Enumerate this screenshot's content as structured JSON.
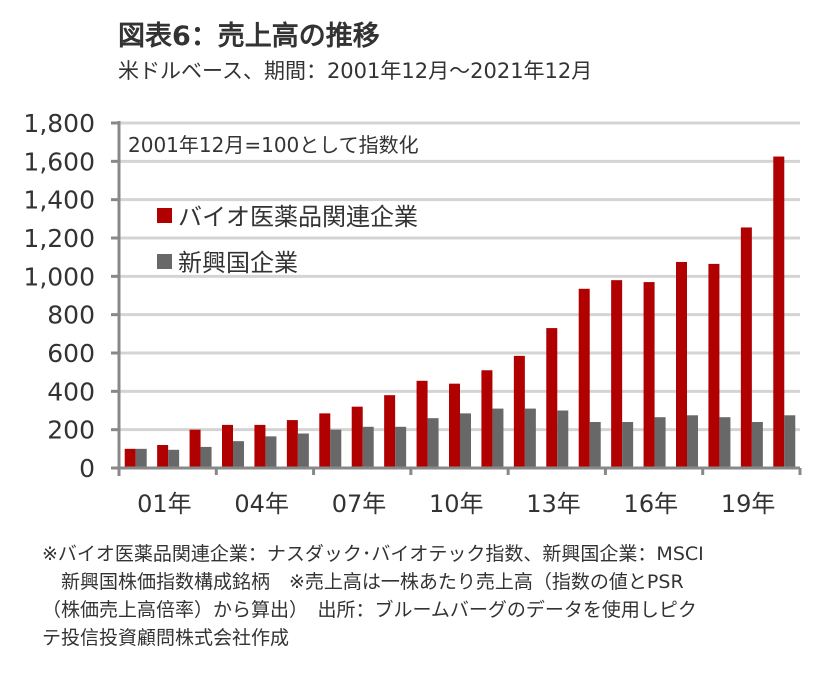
{
  "header": {
    "title": "図表6：売上高の推移",
    "subtitle": "米ドルベース、期間：2001年12月～2021年12月"
  },
  "chart_data": {
    "type": "bar",
    "title": "図表6：売上高の推移",
    "subtitle": "米ドルベース、期間：2001年12月～2021年12月",
    "annotation": "2001年12月=100として指数化",
    "xlabel": "",
    "ylabel": "",
    "ylim": [
      0,
      1800
    ],
    "yticks": [
      0,
      200,
      400,
      600,
      800,
      1000,
      1200,
      1400,
      1600,
      1800
    ],
    "ytick_labels": [
      "0",
      "200",
      "400",
      "600",
      "800",
      "1,000",
      "1,200",
      "1,400",
      "1,600",
      "1,800"
    ],
    "grid": true,
    "legend_position": "top-left",
    "categories": [
      "01",
      "02",
      "03",
      "04",
      "05",
      "06",
      "07",
      "08",
      "09",
      "10",
      "11",
      "12",
      "13",
      "14",
      "15",
      "16",
      "17",
      "18",
      "19",
      "20",
      "21"
    ],
    "xtick_labels": [
      {
        "index": 0,
        "label": "01年"
      },
      {
        "index": 3,
        "label": "04年"
      },
      {
        "index": 6,
        "label": "07年"
      },
      {
        "index": 9,
        "label": "10年"
      },
      {
        "index": 12,
        "label": "13年"
      },
      {
        "index": 15,
        "label": "16年"
      },
      {
        "index": 18,
        "label": "19年"
      }
    ],
    "series": [
      {
        "name": "バイオ医薬品関連企業",
        "color": "#b00000",
        "values": [
          100,
          120,
          200,
          225,
          225,
          250,
          285,
          320,
          380,
          455,
          440,
          510,
          585,
          730,
          935,
          980,
          970,
          1075,
          1065,
          1255,
          1625
        ]
      },
      {
        "name": "新興国企業",
        "color": "#686868",
        "values": [
          100,
          95,
          110,
          140,
          165,
          180,
          200,
          215,
          215,
          260,
          285,
          310,
          310,
          300,
          240,
          240,
          265,
          275,
          265,
          240,
          275
        ]
      }
    ]
  },
  "footnote": {
    "lines": [
      "※バイオ医薬品関連企業：ナスダック･バイオテック指数、新興国企業：MSCI",
      "　新興国株価指数構成銘柄　※売上高は一株あたり売上高（指数の値とPSR",
      "（株価売上高倍率）から算出）　出所：ブルームバーグのデータを使用しピク",
      "テ投信投資顧問株式会社作成"
    ]
  }
}
